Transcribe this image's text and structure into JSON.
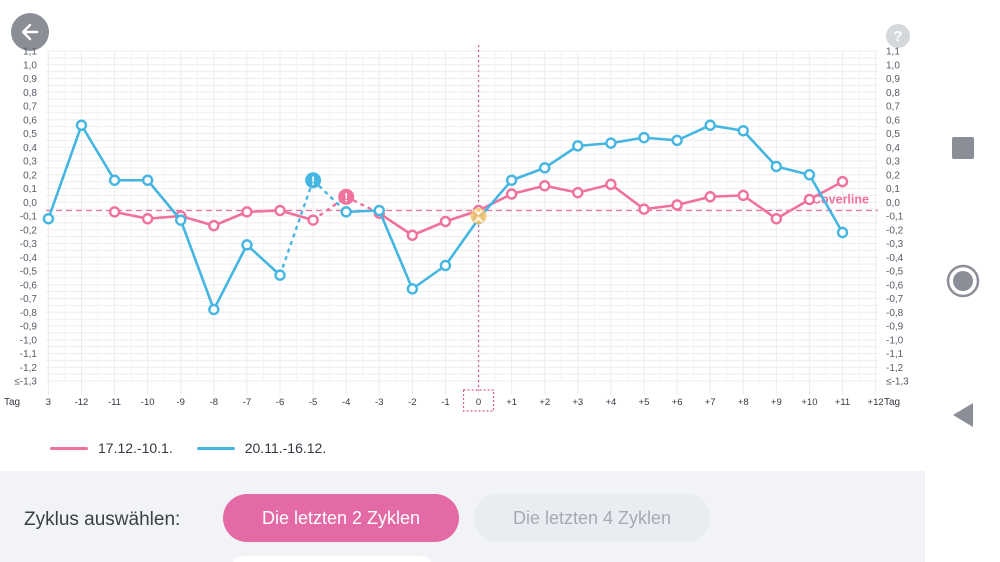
{
  "header": {
    "back_icon": "arrow-left-icon",
    "help_label": "?"
  },
  "chart_data": {
    "type": "line",
    "xlabel": "Tag",
    "x": [
      "3",
      "-12",
      "-11",
      "-10",
      "-9",
      "-8",
      "-7",
      "-6",
      "-5",
      "-4",
      "-3",
      "-2",
      "-1",
      "0",
      "+1",
      "+2",
      "+3",
      "+4",
      "+5",
      "+6",
      "+7",
      "+8",
      "+9",
      "+10",
      "+11",
      "+12"
    ],
    "y_ticks": [
      "1,1",
      "1,0",
      "0,9",
      "0,8",
      "0,7",
      "0,6",
      "0,5",
      "0,4",
      "0,3",
      "0,2",
      "0,1",
      "0,0",
      "-0,1",
      "-0,2",
      "-0,3",
      "-0,4",
      "-0,5",
      "-0,6",
      "-0,7",
      "-0,8",
      "-0,9",
      "-1,0",
      "-1,1",
      "-1,2",
      "≤-1,3"
    ],
    "ylim": [
      -1.3,
      1.1
    ],
    "grid": true,
    "coverline": {
      "label": "Coverline",
      "value": -0.06
    },
    "ovulation_day": "0",
    "series": [
      {
        "name": "17.12.-10.1.",
        "color": "#f0719b",
        "values": [
          null,
          null,
          -0.07,
          -0.12,
          -0.1,
          -0.17,
          -0.07,
          -0.06,
          -0.13,
          null,
          -0.08,
          -0.24,
          -0.14,
          -0.06,
          0.06,
          0.12,
          0.07,
          0.13,
          -0.05,
          -0.02,
          0.04,
          0.05,
          -0.12,
          0.02,
          0.15,
          null
        ],
        "markers": [
          null,
          null,
          null,
          null,
          null,
          null,
          null,
          null,
          null,
          "!",
          null,
          null,
          null,
          null,
          null,
          null,
          null,
          null,
          null,
          null,
          null,
          null,
          null,
          null,
          null,
          null
        ],
        "marker_values": [
          null,
          null,
          null,
          null,
          null,
          null,
          null,
          null,
          null,
          0.04,
          null,
          null,
          null,
          null,
          null,
          null,
          null,
          null,
          null,
          null,
          null,
          null,
          null,
          null,
          null,
          null
        ]
      },
      {
        "name": "20.11.-16.12.",
        "color": "#45b6e2",
        "values": [
          -0.12,
          0.56,
          0.16,
          0.16,
          -0.13,
          -0.78,
          -0.31,
          -0.53,
          null,
          -0.07,
          -0.06,
          -0.63,
          -0.46,
          -0.12,
          0.16,
          0.25,
          0.41,
          0.43,
          0.47,
          0.45,
          0.56,
          0.52,
          0.26,
          0.2,
          -0.22,
          null
        ],
        "markers": [
          null,
          null,
          null,
          null,
          null,
          null,
          null,
          null,
          "!",
          null,
          null,
          null,
          null,
          null,
          null,
          null,
          null,
          null,
          null,
          null,
          null,
          null,
          null,
          null,
          null,
          null
        ],
        "marker_values": [
          null,
          null,
          null,
          null,
          null,
          null,
          null,
          null,
          0.16,
          null,
          null,
          null,
          null,
          null,
          null,
          null,
          null,
          null,
          null,
          null,
          null,
          null,
          null,
          null,
          null,
          null
        ]
      }
    ]
  },
  "legend": [
    {
      "label": "17.12.-10.1.",
      "color": "#f0719b"
    },
    {
      "label": "20.11.-16.12.",
      "color": "#45b6e2"
    }
  ],
  "cycle_select": {
    "label": "Zyklus auswählen:",
    "options": [
      "Die letzten 2 Zyklen",
      "Die letzten 4 Zyklen"
    ],
    "selected": 0
  },
  "navbar": {
    "icons": [
      "square-icon",
      "circle-home-icon",
      "triangle-back-icon"
    ]
  },
  "colors": {
    "accent": "#e36aa4",
    "pink": "#f0719b",
    "blue": "#45b6e2",
    "ovulation": "#f8c36a"
  }
}
